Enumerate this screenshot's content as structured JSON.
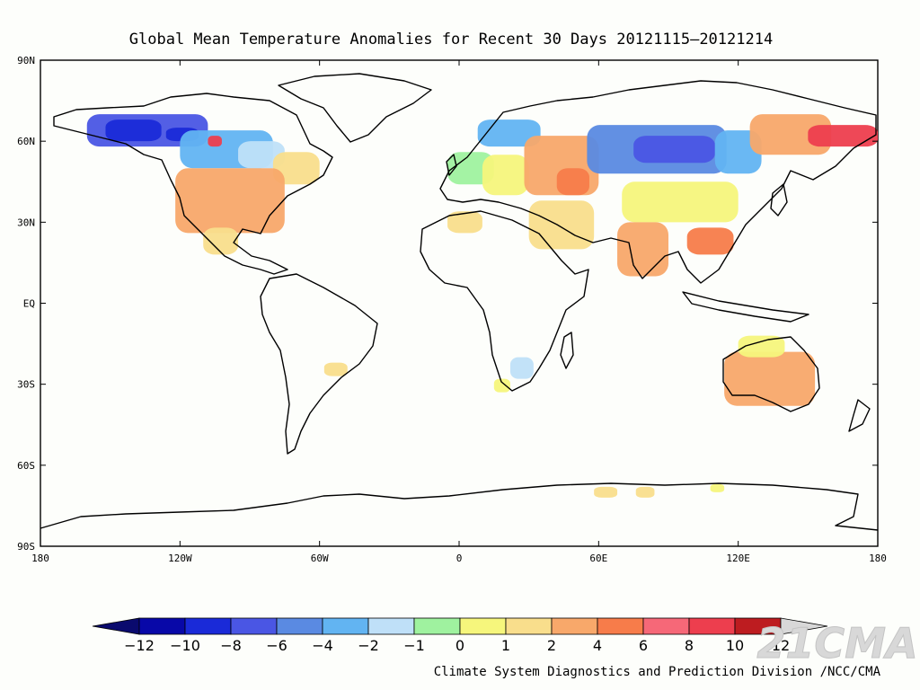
{
  "map": {
    "title": "Global Mean Temperature Anomalies for Recent 30 Days  20121115—20121214",
    "lat_labels": [
      "90N",
      "60N",
      "30N",
      "EQ",
      "30S",
      "60S",
      "90S"
    ],
    "lon_labels": [
      "180",
      "120W",
      "60W",
      "0",
      "60E",
      "120E",
      "180"
    ],
    "lon_range": [
      -180,
      180
    ],
    "lat_range": [
      -90,
      90
    ]
  },
  "colorbar": {
    "tick_labels": [
      "−12",
      "−10",
      "−8",
      "−6",
      "−4",
      "−2",
      "−1",
      "0",
      "1",
      "2",
      "4",
      "6",
      "8",
      "10",
      "12"
    ],
    "bins": [
      {
        "min": null,
        "max": -12,
        "color": "#0a0a6e"
      },
      {
        "min": -12,
        "max": -10,
        "color": "#0808a8"
      },
      {
        "min": -10,
        "max": -8,
        "color": "#1a2ad8"
      },
      {
        "min": -8,
        "max": -6,
        "color": "#4a56e4"
      },
      {
        "min": -6,
        "max": -4,
        "color": "#5a8ae2"
      },
      {
        "min": -4,
        "max": -2,
        "color": "#62b4f2"
      },
      {
        "min": -2,
        "max": -1,
        "color": "#bfe0f8"
      },
      {
        "min": -1,
        "max": 0,
        "color": "#9ff29f"
      },
      {
        "min": 0,
        "max": 1,
        "color": "#f6f67c"
      },
      {
        "min": 1,
        "max": 2,
        "color": "#f9de8c"
      },
      {
        "min": 2,
        "max": 4,
        "color": "#f8a86a"
      },
      {
        "min": 4,
        "max": 6,
        "color": "#f77c4a"
      },
      {
        "min": 6,
        "max": 8,
        "color": "#f66878"
      },
      {
        "min": 8,
        "max": 10,
        "color": "#ed3e4e"
      },
      {
        "min": 10,
        "max": 12,
        "color": "#bd1c20"
      },
      {
        "min": 12,
        "max": null,
        "color": "#d8d8d8"
      }
    ]
  },
  "anomaly_regions": [
    {
      "name": "alaska-nw-canada",
      "color": "#4a56e4",
      "lon": [
        -160,
        -108
      ],
      "lat": [
        58,
        70
      ]
    },
    {
      "name": "alaska-core",
      "color": "#1a2ad8",
      "lon": [
        -152,
        -128
      ],
      "lat": [
        60,
        68
      ]
    },
    {
      "name": "yukon-cold",
      "color": "#1a2ad8",
      "lon": [
        -126,
        -112
      ],
      "lat": [
        60,
        65
      ]
    },
    {
      "name": "central-canada",
      "color": "#62b4f2",
      "lon": [
        -120,
        -80
      ],
      "lat": [
        50,
        64
      ]
    },
    {
      "name": "canada-warm-spot",
      "color": "#ed3e4e",
      "lon": [
        -108,
        -102
      ],
      "lat": [
        58,
        62
      ]
    },
    {
      "name": "hudson-area",
      "color": "#bfe0f8",
      "lon": [
        -95,
        -75
      ],
      "lat": [
        50,
        60
      ]
    },
    {
      "name": "east-canada",
      "color": "#f9de8c",
      "lon": [
        -80,
        -60
      ],
      "lat": [
        44,
        56
      ]
    },
    {
      "name": "usa",
      "color": "#f8a86a",
      "lon": [
        -122,
        -75
      ],
      "lat": [
        26,
        50
      ]
    },
    {
      "name": "mexico",
      "color": "#f9de8c",
      "lon": [
        -110,
        -95
      ],
      "lat": [
        18,
        28
      ]
    },
    {
      "name": "brazil-south",
      "color": "#f9de8c",
      "lon": [
        -58,
        -48
      ],
      "lat": [
        -27,
        -22
      ]
    },
    {
      "name": "antarctic-coast-1",
      "color": "#f9de8c",
      "lon": [
        58,
        68
      ],
      "lat": [
        -72,
        -68
      ]
    },
    {
      "name": "antarctic-coast-2",
      "color": "#f9de8c",
      "lon": [
        76,
        84
      ],
      "lat": [
        -72,
        -68
      ]
    },
    {
      "name": "antarctic-coast-3",
      "color": "#f6f67c",
      "lon": [
        108,
        114
      ],
      "lat": [
        -70,
        -67
      ]
    },
    {
      "name": "scandinavia",
      "color": "#62b4f2",
      "lon": [
        8,
        35
      ],
      "lat": [
        58,
        68
      ]
    },
    {
      "name": "europe-west",
      "color": "#9ff29f",
      "lon": [
        -5,
        15
      ],
      "lat": [
        44,
        56
      ]
    },
    {
      "name": "europe-central",
      "color": "#f6f67c",
      "lon": [
        10,
        30
      ],
      "lat": [
        40,
        55
      ]
    },
    {
      "name": "western-russia",
      "color": "#f8a86a",
      "lon": [
        28,
        60
      ],
      "lat": [
        40,
        62
      ]
    },
    {
      "name": "caspian-warm",
      "color": "#f77c4a",
      "lon": [
        42,
        56
      ],
      "lat": [
        40,
        50
      ]
    },
    {
      "name": "middle-east",
      "color": "#f9de8c",
      "lon": [
        30,
        58
      ],
      "lat": [
        20,
        38
      ]
    },
    {
      "name": "north-africa",
      "color": "#f9de8c",
      "lon": [
        -5,
        10
      ],
      "lat": [
        26,
        34
      ]
    },
    {
      "name": "siberia-cold",
      "color": "#5a8ae2",
      "lon": [
        55,
        115
      ],
      "lat": [
        48,
        66
      ]
    },
    {
      "name": "central-siberia-core",
      "color": "#4a56e4",
      "lon": [
        75,
        110
      ],
      "lat": [
        52,
        62
      ]
    },
    {
      "name": "east-siberia",
      "color": "#62b4f2",
      "lon": [
        110,
        130
      ],
      "lat": [
        48,
        64
      ]
    },
    {
      "name": "china-north",
      "color": "#f6f67c",
      "lon": [
        70,
        120
      ],
      "lat": [
        30,
        45
      ]
    },
    {
      "name": "india",
      "color": "#f8a86a",
      "lon": [
        68,
        90
      ],
      "lat": [
        10,
        30
      ]
    },
    {
      "name": "south-china-warm",
      "color": "#f77c4a",
      "lon": [
        98,
        118
      ],
      "lat": [
        18,
        28
      ]
    },
    {
      "name": "ne-siberia",
      "color": "#f8a86a",
      "lon": [
        125,
        160
      ],
      "lat": [
        55,
        70
      ]
    },
    {
      "name": "kamchatka-hot",
      "color": "#ed3e4e",
      "lon": [
        150,
        180
      ],
      "lat": [
        58,
        66
      ]
    },
    {
      "name": "australia",
      "color": "#f8a86a",
      "lon": [
        114,
        153
      ],
      "lat": [
        -38,
        -18
      ]
    },
    {
      "name": "australia-north",
      "color": "#f6f67c",
      "lon": [
        120,
        140
      ],
      "lat": [
        -20,
        -12
      ]
    },
    {
      "name": "southern-africa",
      "color": "#bfe0f8",
      "lon": [
        22,
        32
      ],
      "lat": [
        -28,
        -20
      ]
    },
    {
      "name": "southern-africa-tip",
      "color": "#f6f67c",
      "lon": [
        15,
        22
      ],
      "lat": [
        -33,
        -28
      ]
    }
  ],
  "footer": {
    "credit": "Climate System Diagnostics and Prediction Division /NCC/CMA",
    "logo": "21CMA"
  }
}
